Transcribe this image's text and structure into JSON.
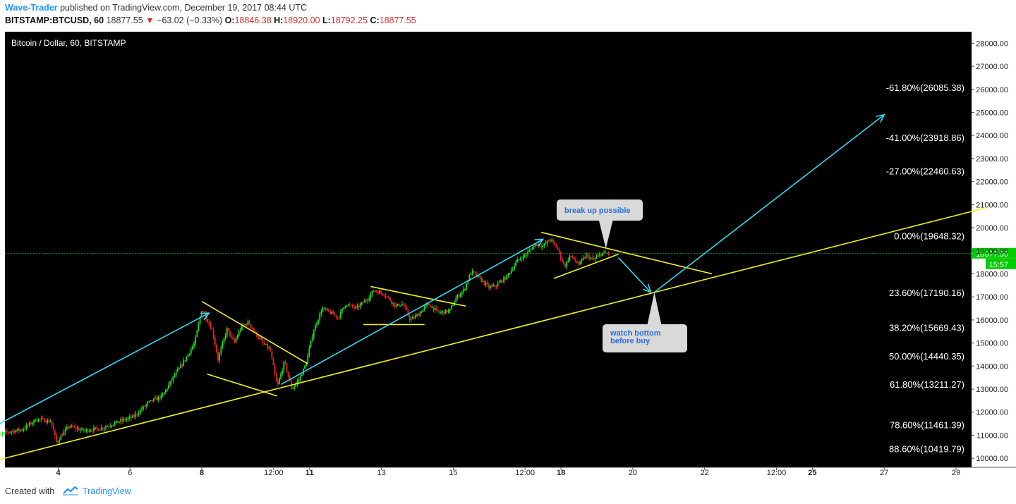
{
  "header": {
    "author": "Wave-Trader",
    "published_text": "published on TradingView.com, December 19, 2017 08:44 UTC",
    "symbol": "BITSTAMP:BTCUSD, 60",
    "last_price": "18877.55",
    "change": "−63.02 (−0.33%)",
    "open_label": "O:",
    "open": "18846.38",
    "high_label": "H:",
    "high": "18920.00",
    "low_label": "L:",
    "low": "18792.25",
    "close_label": "C:",
    "close": "18877.55"
  },
  "footer": {
    "created_with": "Created with",
    "brand": "TradingView"
  },
  "colors": {
    "background": "#000000",
    "up": "#22dd22",
    "down": "#e8232a",
    "trend": "#f2f21a",
    "arrow": "#33d9f0",
    "price_line": "#00cc00"
  },
  "chart_data": {
    "type": "candlestick",
    "title": "Bitcoin / Dollar, 60, BITSTAMP",
    "ylim": [
      9800,
      28500
    ],
    "y_ticks": [
      "10000.00",
      "11000.00",
      "12000.00",
      "13000.00",
      "14000.00",
      "15000.00",
      "16000.00",
      "17000.00",
      "18000.00",
      "19000.00",
      "20000.00",
      "21000.00",
      "22000.00",
      "23000.00",
      "24000.00",
      "25000.00",
      "26000.00",
      "27000.00",
      "28000.00"
    ],
    "x_ticks": [
      {
        "label": "4",
        "bold": true,
        "day": 4
      },
      {
        "label": "6",
        "bold": false,
        "day": 6
      },
      {
        "label": "8",
        "bold": true,
        "day": 8
      },
      {
        "label": "12:00",
        "bold": false,
        "day": 10
      },
      {
        "label": "11",
        "bold": true,
        "day": 11
      },
      {
        "label": "13",
        "bold": false,
        "day": 13
      },
      {
        "label": "15",
        "bold": false,
        "day": 15
      },
      {
        "label": "12:00",
        "bold": false,
        "day": 17
      },
      {
        "label": "18",
        "bold": true,
        "day": 18
      },
      {
        "label": "20",
        "bold": false,
        "day": 20
      },
      {
        "label": "22",
        "bold": false,
        "day": 22
      },
      {
        "label": "12:00",
        "bold": false,
        "day": 24
      },
      {
        "label": "25",
        "bold": true,
        "day": 25
      },
      {
        "label": "27",
        "bold": false,
        "day": 27
      },
      {
        "label": "29",
        "bold": false,
        "day": 29
      }
    ],
    "price_marker": {
      "value": 18877.55,
      "label": "18877.55",
      "countdown": "15:57"
    },
    "fib_levels": [
      {
        "label": "-61.80%(26085.38)",
        "value": 26085.38
      },
      {
        "label": "-41.00%(23918.86)",
        "value": 23918.86
      },
      {
        "label": "-27.00%(22460.63)",
        "value": 22460.63
      },
      {
        "label": "0.00%(19648.32)",
        "value": 19648.32
      },
      {
        "label": "23.60%(17190.16)",
        "value": 17190.16
      },
      {
        "label": "38.20%(15669.43)",
        "value": 15669.43
      },
      {
        "label": "50.00%(14440.35)",
        "value": 14440.35
      },
      {
        "label": "61.80%(13211.27)",
        "value": 13211.27
      },
      {
        "label": "78.60%(11461.39)",
        "value": 11461.39
      },
      {
        "label": "88.60%(10419.79)",
        "value": 10419.79
      }
    ],
    "price_path": [
      [
        2.2,
        10900
      ],
      [
        2.6,
        11150
      ],
      [
        3.0,
        11250
      ],
      [
        3.4,
        11700
      ],
      [
        3.8,
        11600
      ],
      [
        3.95,
        10700
      ],
      [
        4.3,
        11400
      ],
      [
        4.7,
        11200
      ],
      [
        5.2,
        11300
      ],
      [
        5.7,
        11600
      ],
      [
        6.1,
        11800
      ],
      [
        6.5,
        12400
      ],
      [
        6.9,
        12700
      ],
      [
        7.2,
        13500
      ],
      [
        7.5,
        14200
      ],
      [
        7.8,
        15000
      ],
      [
        8.0,
        16500
      ],
      [
        8.3,
        15500
      ],
      [
        8.45,
        14300
      ],
      [
        8.7,
        15600
      ],
      [
        8.9,
        15000
      ],
      [
        9.1,
        15700
      ],
      [
        9.3,
        15900
      ],
      [
        9.5,
        15400
      ],
      [
        9.7,
        15000
      ],
      [
        9.9,
        14700
      ],
      [
        10.1,
        13100
      ],
      [
        10.3,
        14200
      ],
      [
        10.5,
        13000
      ],
      [
        10.7,
        13400
      ],
      [
        10.9,
        14100
      ],
      [
        11.1,
        15500
      ],
      [
        11.35,
        16500
      ],
      [
        11.6,
        16300
      ],
      [
        11.8,
        16100
      ],
      [
        12.0,
        16700
      ],
      [
        12.3,
        16500
      ],
      [
        12.6,
        16900
      ],
      [
        12.8,
        17300
      ],
      [
        13.1,
        17100
      ],
      [
        13.4,
        16600
      ],
      [
        13.6,
        16700
      ],
      [
        13.8,
        16000
      ],
      [
        14.0,
        16200
      ],
      [
        14.3,
        16700
      ],
      [
        14.6,
        16300
      ],
      [
        14.9,
        16400
      ],
      [
        15.1,
        17000
      ],
      [
        15.3,
        17300
      ],
      [
        15.5,
        18100
      ],
      [
        15.8,
        17700
      ],
      [
        16.0,
        17400
      ],
      [
        16.2,
        17500
      ],
      [
        16.5,
        17900
      ],
      [
        16.8,
        18600
      ],
      [
        17.0,
        18800
      ],
      [
        17.3,
        19300
      ],
      [
        17.5,
        19200
      ],
      [
        17.7,
        19500
      ],
      [
        17.9,
        19100
      ],
      [
        18.1,
        18300
      ],
      [
        18.25,
        18800
      ],
      [
        18.5,
        18400
      ],
      [
        18.7,
        18800
      ],
      [
        18.9,
        18600
      ],
      [
        19.15,
        18900
      ],
      [
        19.35,
        18880
      ]
    ],
    "trendlines": [
      {
        "from": [
          2.0,
          9800
        ],
        "to": [
          29.8,
          20850
        ]
      },
      {
        "from": [
          8.0,
          16800
        ],
        "to": [
          10.95,
          14100
        ]
      },
      {
        "from": [
          8.15,
          13650
        ],
        "to": [
          10.1,
          12700
        ]
      },
      {
        "from": [
          12.7,
          17450
        ],
        "to": [
          15.35,
          16600
        ]
      },
      {
        "from": [
          12.5,
          15800
        ],
        "to": [
          14.2,
          15800
        ]
      },
      {
        "from": [
          17.45,
          19800
        ],
        "to": [
          22.2,
          18000
        ]
      },
      {
        "from": [
          17.8,
          17800
        ],
        "to": [
          19.6,
          18850
        ]
      }
    ],
    "arrows": [
      {
        "from": [
          2.0,
          11200
        ],
        "to": [
          8.2,
          16300
        ]
      },
      {
        "from": [
          10.2,
          13200
        ],
        "to": [
          17.5,
          19500
        ]
      },
      {
        "from": [
          19.6,
          18700
        ],
        "to": [
          20.5,
          17200
        ]
      },
      {
        "from": [
          20.6,
          17200
        ],
        "to": [
          27.0,
          24900
        ]
      }
    ],
    "annotations": [
      {
        "text": "break up possible",
        "pointer": [
          19.25,
          19100
        ]
      },
      {
        "text": "watch bottom\nbefore buy",
        "pointer": [
          20.6,
          17200
        ]
      }
    ]
  }
}
